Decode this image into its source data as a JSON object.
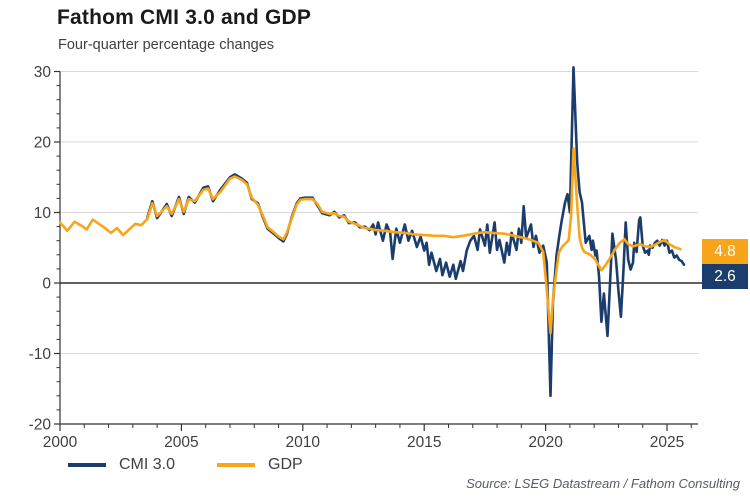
{
  "chart_data": {
    "type": "line",
    "title": "Fathom CMI 3.0 and GDP",
    "subtitle": "Four-quarter percentage changes",
    "source": "Source: LSEG Datastream / Fathom Consulting",
    "x_axis": {
      "min": 2000,
      "max": 2026.3,
      "major_ticks": [
        2000,
        2005,
        2010,
        2015,
        2020,
        2025
      ],
      "minor_tick_interval": 1
    },
    "y_axis": {
      "min": -20,
      "max": 30,
      "major_ticks": [
        30,
        20,
        10,
        0,
        -10,
        -20
      ],
      "minor_tick_interval": 2,
      "unit": "four-quarter percent change"
    },
    "grid": {
      "show_major_horizontal": true,
      "zero_line": true,
      "gridline_color": "#d9d9d9",
      "zero_line_color": "#000000",
      "axis_color": "#333333",
      "tick_label_color": "#404040"
    },
    "legend_position": "bottom-left",
    "series": [
      {
        "name": "CMI 3.0",
        "color": "#1b3d6d",
        "end_label": "2.6",
        "points": [
          [
            2003.6,
            9.3
          ],
          [
            2003.8,
            11.6
          ],
          [
            2004.0,
            9.2
          ],
          [
            2004.4,
            11.2
          ],
          [
            2004.6,
            9.5
          ],
          [
            2004.9,
            12.2
          ],
          [
            2005.1,
            9.8
          ],
          [
            2005.3,
            12.2
          ],
          [
            2005.55,
            11.4
          ],
          [
            2005.9,
            13.5
          ],
          [
            2006.1,
            13.7
          ],
          [
            2006.3,
            11.6
          ],
          [
            2006.6,
            13.2
          ],
          [
            2007.0,
            15.0
          ],
          [
            2007.2,
            15.4
          ],
          [
            2007.5,
            14.8
          ],
          [
            2007.7,
            14.2
          ],
          [
            2007.9,
            11.9
          ],
          [
            2008.15,
            11.3
          ],
          [
            2008.35,
            9.4
          ],
          [
            2008.55,
            7.7
          ],
          [
            2008.8,
            7.0
          ],
          [
            2009.0,
            6.4
          ],
          [
            2009.2,
            5.9
          ],
          [
            2009.35,
            7.0
          ],
          [
            2009.55,
            9.4
          ],
          [
            2009.75,
            11.3
          ],
          [
            2009.9,
            12.0
          ],
          [
            2010.1,
            12.1
          ],
          [
            2010.4,
            12.1
          ],
          [
            2010.6,
            11.0
          ],
          [
            2010.8,
            9.9
          ],
          [
            2011.1,
            9.6
          ],
          [
            2011.3,
            10.1
          ],
          [
            2011.5,
            9.3
          ],
          [
            2011.7,
            9.6
          ],
          [
            2011.9,
            8.5
          ],
          [
            2012.15,
            8.6
          ],
          [
            2012.35,
            7.9
          ],
          [
            2012.55,
            8.0
          ],
          [
            2012.75,
            7.5
          ],
          [
            2012.9,
            8.3
          ],
          [
            2013.0,
            6.9
          ],
          [
            2013.1,
            8.6
          ],
          [
            2013.3,
            6.0
          ],
          [
            2013.45,
            8.3
          ],
          [
            2013.6,
            7.1
          ],
          [
            2013.7,
            3.4
          ],
          [
            2013.85,
            7.7
          ],
          [
            2014.0,
            5.7
          ],
          [
            2014.2,
            8.3
          ],
          [
            2014.35,
            6.0
          ],
          [
            2014.5,
            7.4
          ],
          [
            2014.7,
            5.1
          ],
          [
            2014.85,
            6.6
          ],
          [
            2015.0,
            4.6
          ],
          [
            2015.1,
            5.7
          ],
          [
            2015.2,
            2.6
          ],
          [
            2015.3,
            4.3
          ],
          [
            2015.5,
            1.7
          ],
          [
            2015.65,
            3.4
          ],
          [
            2015.75,
            1.1
          ],
          [
            2015.9,
            2.9
          ],
          [
            2016.05,
            0.9
          ],
          [
            2016.2,
            2.6
          ],
          [
            2016.3,
            0.6
          ],
          [
            2016.5,
            3.1
          ],
          [
            2016.6,
            1.7
          ],
          [
            2016.75,
            4.6
          ],
          [
            2016.9,
            6.0
          ],
          [
            2017.05,
            6.7
          ],
          [
            2017.2,
            4.7
          ],
          [
            2017.3,
            7.6
          ],
          [
            2017.5,
            5.3
          ],
          [
            2017.6,
            8.3
          ],
          [
            2017.7,
            4.3
          ],
          [
            2017.9,
            8.6
          ],
          [
            2018.0,
            4.7
          ],
          [
            2018.1,
            6.1
          ],
          [
            2018.3,
            2.9
          ],
          [
            2018.4,
            5.7
          ],
          [
            2018.5,
            4.0
          ],
          [
            2018.6,
            7.1
          ],
          [
            2018.8,
            4.7
          ],
          [
            2018.9,
            7.7
          ],
          [
            2019.0,
            5.7
          ],
          [
            2019.1,
            10.9
          ],
          [
            2019.2,
            6.4
          ],
          [
            2019.4,
            8.3
          ],
          [
            2019.5,
            5.1
          ],
          [
            2019.6,
            6.7
          ],
          [
            2019.75,
            4.3
          ],
          [
            2019.9,
            5.3
          ],
          [
            2020.05,
            2.9
          ],
          [
            2020.2,
            -16.0
          ],
          [
            2020.3,
            -2.9
          ],
          [
            2020.45,
            3.9
          ],
          [
            2020.55,
            6.4
          ],
          [
            2020.65,
            8.6
          ],
          [
            2020.8,
            11.4
          ],
          [
            2020.9,
            12.6
          ],
          [
            2021.0,
            10.0
          ],
          [
            2021.15,
            30.6
          ],
          [
            2021.3,
            17.1
          ],
          [
            2021.4,
            12.9
          ],
          [
            2021.5,
            11.4
          ],
          [
            2021.65,
            5.7
          ],
          [
            2021.8,
            6.7
          ],
          [
            2021.9,
            4.7
          ],
          [
            2021.95,
            6.0
          ],
          [
            2022.05,
            3.9
          ],
          [
            2022.1,
            4.6
          ],
          [
            2022.2,
            1.0
          ],
          [
            2022.3,
            -5.5
          ],
          [
            2022.4,
            -1.5
          ],
          [
            2022.55,
            -7.5
          ],
          [
            2022.75,
            7.0
          ],
          [
            2022.9,
            3.3
          ],
          [
            2023.0,
            -1.0
          ],
          [
            2023.1,
            -4.8
          ],
          [
            2023.2,
            1.4
          ],
          [
            2023.3,
            8.6
          ],
          [
            2023.4,
            3.3
          ],
          [
            2023.5,
            1.9
          ],
          [
            2023.6,
            2.9
          ],
          [
            2023.65,
            5.7
          ],
          [
            2023.75,
            4.4
          ],
          [
            2023.85,
            8.9
          ],
          [
            2023.9,
            9.3
          ],
          [
            2024.0,
            5.3
          ],
          [
            2024.1,
            4.3
          ],
          [
            2024.2,
            4.6
          ],
          [
            2024.25,
            4.0
          ],
          [
            2024.3,
            5.3
          ],
          [
            2024.4,
            5.0
          ],
          [
            2024.5,
            5.7
          ],
          [
            2024.6,
            6.0
          ],
          [
            2024.7,
            5.3
          ],
          [
            2024.8,
            6.1
          ],
          [
            2024.9,
            5.3
          ],
          [
            2025.0,
            6.0
          ],
          [
            2025.1,
            4.3
          ],
          [
            2025.2,
            4.6
          ],
          [
            2025.3,
            3.6
          ],
          [
            2025.4,
            3.9
          ],
          [
            2025.5,
            3.3
          ],
          [
            2025.6,
            3.1
          ],
          [
            2025.7,
            2.6
          ]
        ]
      },
      {
        "name": "GDP",
        "color": "#f9a51b",
        "end_label": "4.8",
        "points": [
          [
            2000.0,
            8.6
          ],
          [
            2000.3,
            7.4
          ],
          [
            2000.6,
            8.7
          ],
          [
            2000.85,
            8.2
          ],
          [
            2001.1,
            7.6
          ],
          [
            2001.35,
            9.0
          ],
          [
            2001.6,
            8.4
          ],
          [
            2001.85,
            7.8
          ],
          [
            2002.1,
            7.1
          ],
          [
            2002.35,
            7.8
          ],
          [
            2002.6,
            6.8
          ],
          [
            2002.85,
            7.6
          ],
          [
            2003.1,
            8.4
          ],
          [
            2003.35,
            8.2
          ],
          [
            2003.6,
            9.1
          ],
          [
            2003.8,
            11.3
          ],
          [
            2004.0,
            9.5
          ],
          [
            2004.4,
            10.9
          ],
          [
            2004.6,
            9.8
          ],
          [
            2004.9,
            11.9
          ],
          [
            2005.1,
            10.1
          ],
          [
            2005.3,
            11.9
          ],
          [
            2005.55,
            11.6
          ],
          [
            2005.9,
            13.2
          ],
          [
            2006.1,
            13.4
          ],
          [
            2006.3,
            11.9
          ],
          [
            2006.6,
            12.9
          ],
          [
            2007.0,
            14.8
          ],
          [
            2007.2,
            15.1
          ],
          [
            2007.5,
            14.6
          ],
          [
            2007.7,
            14.0
          ],
          [
            2007.9,
            12.1
          ],
          [
            2008.15,
            11.1
          ],
          [
            2008.35,
            9.6
          ],
          [
            2008.55,
            7.9
          ],
          [
            2008.8,
            7.2
          ],
          [
            2009.0,
            6.6
          ],
          [
            2009.2,
            6.2
          ],
          [
            2009.35,
            7.2
          ],
          [
            2009.55,
            9.2
          ],
          [
            2009.75,
            11.1
          ],
          [
            2009.9,
            11.8
          ],
          [
            2010.1,
            11.9
          ],
          [
            2010.4,
            11.9
          ],
          [
            2010.6,
            11.2
          ],
          [
            2010.8,
            10.1
          ],
          [
            2011.1,
            9.8
          ],
          [
            2011.3,
            9.9
          ],
          [
            2011.5,
            9.5
          ],
          [
            2011.7,
            9.4
          ],
          [
            2011.9,
            8.7
          ],
          [
            2012.15,
            8.4
          ],
          [
            2012.35,
            8.1
          ],
          [
            2012.55,
            7.8
          ],
          [
            2012.75,
            7.7
          ],
          [
            2013.0,
            7.5
          ],
          [
            2013.4,
            7.4
          ],
          [
            2013.8,
            7.2
          ],
          [
            2014.2,
            7.1
          ],
          [
            2014.6,
            6.9
          ],
          [
            2015.0,
            6.8
          ],
          [
            2015.4,
            6.7
          ],
          [
            2015.8,
            6.7
          ],
          [
            2016.2,
            6.5
          ],
          [
            2016.6,
            6.7
          ],
          [
            2017.05,
            7.0
          ],
          [
            2017.45,
            7.2
          ],
          [
            2017.85,
            7.1
          ],
          [
            2018.3,
            7.0
          ],
          [
            2018.7,
            6.7
          ],
          [
            2019.1,
            6.4
          ],
          [
            2019.4,
            6.1
          ],
          [
            2019.7,
            5.7
          ],
          [
            2019.9,
            4.4
          ],
          [
            2020.05,
            -1.0
          ],
          [
            2020.2,
            -7.1
          ],
          [
            2020.3,
            -2.4
          ],
          [
            2020.45,
            1.8
          ],
          [
            2020.55,
            4.4
          ],
          [
            2020.7,
            5.2
          ],
          [
            2020.85,
            5.7
          ],
          [
            2020.95,
            6.1
          ],
          [
            2021.05,
            9.6
          ],
          [
            2021.15,
            19.1
          ],
          [
            2021.3,
            11.1
          ],
          [
            2021.4,
            6.4
          ],
          [
            2021.5,
            5.0
          ],
          [
            2021.6,
            4.4
          ],
          [
            2021.85,
            4.0
          ],
          [
            2022.05,
            3.3
          ],
          [
            2022.3,
            1.8
          ],
          [
            2022.5,
            2.7
          ],
          [
            2022.65,
            3.5
          ],
          [
            2022.85,
            4.7
          ],
          [
            2023.05,
            5.7
          ],
          [
            2023.25,
            6.2
          ],
          [
            2023.4,
            5.5
          ],
          [
            2023.6,
            5.2
          ],
          [
            2023.9,
            5.5
          ],
          [
            2024.1,
            5.2
          ],
          [
            2024.3,
            5.1
          ],
          [
            2024.5,
            5.4
          ],
          [
            2024.7,
            5.8
          ],
          [
            2024.9,
            6.1
          ],
          [
            2025.1,
            5.5
          ],
          [
            2025.3,
            5.1
          ],
          [
            2025.55,
            4.8
          ]
        ]
      }
    ]
  }
}
